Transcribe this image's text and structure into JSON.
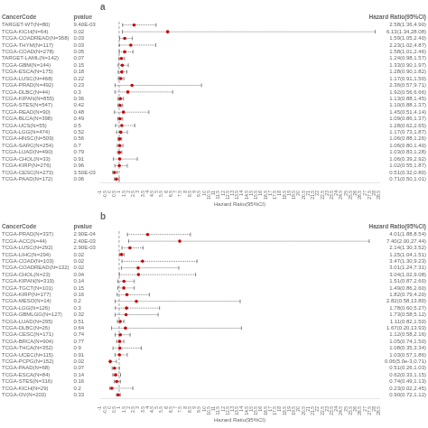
{
  "chart_data": [
    {
      "type": "forest",
      "title": "a",
      "column_headers": [
        "CancerCode",
        "pvalue",
        "Hazard Ratio(95%CI)"
      ],
      "x_label": "Hazard Ratio(95%CI)",
      "categories": [
        "TARGET-WT(N=80)",
        "TCGA-KICH(N=64)",
        "TCGA-COADREAD(N=368)",
        "TCGA-THYM(N=117)",
        "TCGA-COAD(N=278)",
        "TARGET-LAML(N=142)",
        "TCGA-GBM(N=144)",
        "TCGA-ESCA(N=175)",
        "TCGA-LUSC(N=468)",
        "TCGA-PRAD(N=492)",
        "TCGA-DLBC(N=44)",
        "TCGA-KIPAN(N=855)",
        "TCGA-STES(N=547)",
        "TCGA-READ(N=90)",
        "TCGA-BLCA(N=398)",
        "TCGA-UCS(N=55)",
        "TCGA-LGG(N=474)",
        "TCGA-HNSC(N=509)",
        "TCGA-SARC(N=254)",
        "TCGA-LUAD(N=490)",
        "TCGA-CHOL(N=33)",
        "TCGA-KIRP(N=276)",
        "TCGA-CESC(N=273)",
        "TCGA-PAAD(N=172)"
      ],
      "pvalues": [
        "9.40E-03",
        "0.02",
        "0.03",
        "0.03",
        "0.05",
        "0.07",
        "0.15",
        "0.18",
        "0.22",
        "0.23",
        "0.3",
        "0.36",
        "0.42",
        "0.48",
        "0.49",
        "0.5",
        "0.52",
        "0.56",
        "0.7",
        "0.79",
        "0.91",
        "0.96",
        "3.50E-03",
        "0.06"
      ],
      "values": [
        2.58,
        6.13,
        1.59,
        2.23,
        1.58,
        1.24,
        1.33,
        1.28,
        1.17,
        2.36,
        1.92,
        1.13,
        1.1,
        1.45,
        1.09,
        1.28,
        1.17,
        1.06,
        1.06,
        1.03,
        1.06,
        1.02,
        0.51,
        0.71
      ],
      "ci_lo": [
        1.36,
        1.34,
        1.05,
        1.02,
        1.01,
        0.98,
        0.9,
        0.9,
        0.91,
        0.57,
        0.56,
        0.88,
        0.88,
        0.51,
        0.86,
        0.62,
        0.73,
        0.88,
        0.8,
        0.83,
        0.39,
        0.55,
        0.32,
        0.5
      ],
      "ci_hi": [
        4.9,
        28.08,
        2.4,
        4.87,
        2.46,
        1.57,
        1.97,
        1.82,
        1.5,
        9.71,
        6.66,
        1.45,
        1.37,
        4.14,
        1.37,
        2.65,
        1.87,
        1.26,
        1.4,
        1.28,
        2.92,
        1.87,
        0.8,
        1.01
      ],
      "value_labels": [
        "2.58(1.36,4.90)",
        "6.13(1.34,28.08)",
        "1.59(1.05,2.40)",
        "2.23(1.02,4.87)",
        "1.58(1.01,2.46)",
        "1.24(0.98,1.57)",
        "1.33(0.90,1.97)",
        "1.28(0.90,1.82)",
        "1.17(0.91,1.50)",
        "2.36(0.57,9.71)",
        "1.92(0.56,6.66)",
        "1.13(0.88,1.45)",
        "1.10(0.88,1.37)",
        "1.45(0.51,4.14)",
        "1.09(0.86,1.37)",
        "1.28(0.62,2.65)",
        "1.17(0.73,1.87)",
        "1.06(0.88,1.26)",
        "1.06(0.80,1.40)",
        "1.03(0.83,1.28)",
        "1.06(0.39,2.92)",
        "1.02(0.55,1.87)",
        "0.51(0.32,0.80)",
        "0.71(0.50,1.01)"
      ],
      "color": "#cc0000",
      "reference_line": 1.0,
      "xlim": [
        -1.0,
        28.5
      ],
      "xticks": [
        -1.0,
        -0.5,
        0,
        0.5,
        1,
        1.5,
        2,
        2.5,
        3,
        3.5,
        4,
        4.5,
        5,
        5.5,
        6,
        6.5,
        7,
        7.5,
        8,
        8.5,
        9,
        9.5,
        10,
        10.5,
        11,
        11.5,
        12,
        12.5,
        13,
        13.5,
        14,
        14.5,
        15,
        15.5,
        16,
        16.5,
        17,
        17.5,
        18,
        18.5,
        19,
        19.5,
        20,
        20.5,
        21,
        21.5,
        22,
        22.5,
        23,
        23.5,
        24,
        24.5,
        25,
        25.5,
        26,
        26.5,
        27,
        27.5,
        28,
        28.5
      ],
      "grid": false
    },
    {
      "type": "forest",
      "title": "b",
      "column_headers": [
        "CancerCode",
        "pvalue",
        "Hazard Ratio(95%CI)"
      ],
      "x_label": "Hazard Ratio(95%CI)",
      "categories": [
        "TCGA-PRAD(N=337)",
        "TCGA-ACC(N=44)",
        "TCGA-LUSC(N=292)",
        "TCGA-LIHC(N=294)",
        "TCGA-COAD(N=103)",
        "TCGA-COADREAD(N=132)",
        "TCGA-CHOL(N=23)",
        "TCGA-KIPAN(N=319)",
        "TCGA-TGCT(N=101)",
        "TCGA-KIRP(N=177)",
        "TCGA-MESO(N=14)",
        "TCGA-LGG(N=126)",
        "TCGA-GBMLGG(N=127)",
        "TCGA-LUAD(N=295)",
        "TCGA-DLBC(N=26)",
        "TCGA-CESC(N=171)",
        "TCGA-BRCA(N=904)",
        "TCGA-THCA(N=352)",
        "TCGA-UCEC(N=115)",
        "TCGA-PCPG(N=152)",
        "TCGA-PAAD(N=68)",
        "TCGA-ESCA(N=84)",
        "TCGA-STES(N=316)",
        "TCGA-KICH(N=29)",
        "TCGA-OV(N=203)"
      ],
      "pvalues": [
        "2.90E-04",
        "2.40E-03",
        "2.90E-03",
        "0.02",
        "0.02",
        "0.02",
        "0.04",
        "0.14",
        "0.15",
        "0.16",
        "0.2",
        "0.3",
        "0.32",
        "0.51",
        "0.64",
        "0.74",
        "0.77",
        "0.9",
        "0.91",
        "0.02",
        "0.07",
        "0.14",
        "0.16",
        "0.2",
        "0.33"
      ],
      "values": [
        4.01,
        7.4,
        2.14,
        1.25,
        3.47,
        3.01,
        3.04,
        1.51,
        1.49,
        1.82,
        2.82,
        1.78,
        1.73,
        1.11,
        1.67,
        1.12,
        1.05,
        1.08,
        1.03,
        0.06,
        0.51,
        0.62,
        0.74,
        0.23,
        0.9
      ],
      "ci_lo": [
        1.88,
        2.0,
        1.3,
        1.04,
        1.3,
        1.24,
        1.02,
        0.87,
        0.86,
        0.79,
        0.58,
        0.6,
        0.58,
        0.82,
        0.2,
        0.58,
        0.74,
        0.35,
        0.57,
        0.005,
        0.26,
        0.33,
        0.49,
        0.02,
        0.72
      ],
      "ci_hi": [
        8.54,
        27.44,
        3.52,
        1.51,
        9.23,
        7.31,
        9.08,
        2.6,
        2.6,
        4.2,
        13.8,
        5.27,
        5.12,
        1.5,
        13.93,
        2.16,
        1.5,
        3.34,
        1.86,
        0.71,
        1.03,
        1.15,
        1.13,
        2.45,
        1.12
      ],
      "value_labels": [
        "4.01(1.88,8.54)",
        "7.40(2.00,27.44)",
        "2.14(1.30,3.52)",
        "1.25(1.04,1.51)",
        "3.47(1.30,9.23)",
        "3.01(1.24,7.31)",
        "3.04(1.02,9.08)",
        "1.51(0.87,2.60)",
        "1.49(0.86,2.60)",
        "1.82(0.79,4.20)",
        "2.82(0.58,13.80)",
        "1.78(0.60,5.27)",
        "1.73(0.58,5.12)",
        "1.11(0.82,1.50)",
        "1.67(0.20,13.93)",
        "1.12(0.58,2.16)",
        "1.05(0.74,1.50)",
        "1.08(0.35,3.34)",
        "1.03(0.57,1.86)",
        "0.06(5.0e-3,0.71)",
        "0.51(0.26,1.03)",
        "0.62(0.33,1.15)",
        "0.74(0.49,1.13)",
        "0.23(0.02,2.45)",
        "0.90(0.72,1.12)"
      ],
      "color": "#cc0000",
      "reference_line": 1.0,
      "xlim": [
        -1.0,
        28.5
      ],
      "xticks": [
        -1.0,
        -0.5,
        0,
        0.5,
        1,
        1.5,
        2,
        2.5,
        3,
        3.5,
        4,
        4.5,
        5,
        5.5,
        6,
        6.5,
        7,
        7.5,
        8,
        8.5,
        9,
        9.5,
        10,
        10.5,
        11,
        11.5,
        12,
        12.5,
        13,
        13.5,
        14,
        14.5,
        15,
        15.5,
        16,
        16.5,
        17,
        17.5,
        18,
        18.5,
        19,
        19.5,
        20,
        20.5,
        21,
        21.5,
        22,
        22.5,
        23,
        23.5,
        24,
        24.5,
        25,
        25.5,
        26,
        26.5,
        27,
        27.5,
        28,
        28.5
      ],
      "grid": false
    }
  ]
}
